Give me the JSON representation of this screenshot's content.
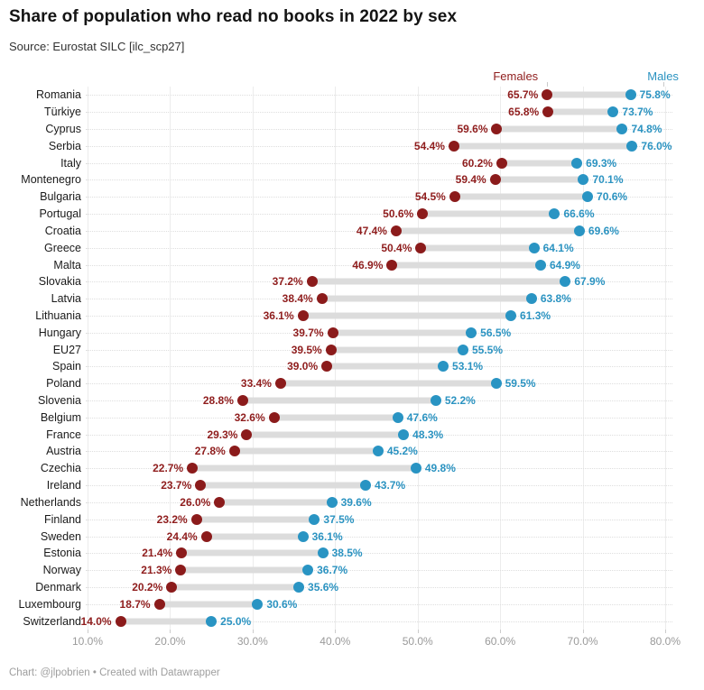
{
  "header": {
    "title": "Share of population who read no books in 2022 by sex",
    "source": "Source: Eurostat SILC [ilc_scp27]"
  },
  "legend": {
    "female_label": "Females",
    "male_label": "Males"
  },
  "colors": {
    "female": "#8B1B1B",
    "female_text": "#8F1D1D",
    "male": "#2994C3",
    "male_text": "#2B93C1",
    "connector": "#dcdcdc",
    "grid": "#ececec",
    "axis_text": "#9a9a9a"
  },
  "chart_data": {
    "type": "scatter",
    "variant": "dumbbell-range-plot",
    "title": "Share of population who read no books in 2022 by sex",
    "subtitle": "Source: Eurostat SILC [ilc_scp27]",
    "xlabel": "",
    "ylabel": "",
    "xlim": [
      10,
      80
    ],
    "grid": "vertical",
    "legend_position": "top-right",
    "value_suffix": "%",
    "x_tick_labels": [
      "10.0%",
      "20.0%",
      "30.0%",
      "40.0%",
      "50.0%",
      "60.0%",
      "70.0%",
      "80.0%"
    ],
    "x_tick_values": [
      10,
      20,
      30,
      40,
      50,
      60,
      70,
      80
    ],
    "categories": [
      "Romania",
      "Türkiye",
      "Cyprus",
      "Serbia",
      "Italy",
      "Montenegro",
      "Bulgaria",
      "Portugal",
      "Croatia",
      "Greece",
      "Malta",
      "Slovakia",
      "Latvia",
      "Lithuania",
      "Hungary",
      "EU27",
      "Spain",
      "Poland",
      "Slovenia",
      "Belgium",
      "France",
      "Austria",
      "Czechia",
      "Ireland",
      "Netherlands",
      "Finland",
      "Sweden",
      "Estonia",
      "Norway",
      "Denmark",
      "Luxembourg",
      "Switzerland"
    ],
    "series": [
      {
        "name": "Females",
        "values": [
          65.7,
          65.8,
          59.6,
          54.4,
          60.2,
          59.4,
          54.5,
          50.6,
          47.4,
          50.4,
          46.9,
          37.2,
          38.4,
          36.1,
          39.7,
          39.5,
          39.0,
          33.4,
          28.8,
          32.6,
          29.3,
          27.8,
          22.7,
          23.7,
          26.0,
          23.2,
          24.4,
          21.4,
          21.3,
          20.2,
          18.7,
          14.0
        ]
      },
      {
        "name": "Males",
        "values": [
          75.8,
          73.7,
          74.8,
          76.0,
          69.3,
          70.1,
          70.6,
          66.6,
          69.6,
          64.1,
          64.9,
          67.9,
          63.8,
          61.3,
          56.5,
          55.5,
          53.1,
          59.5,
          52.2,
          47.6,
          48.3,
          45.2,
          49.8,
          43.7,
          39.6,
          37.5,
          36.1,
          38.5,
          36.7,
          35.6,
          30.6,
          25.0
        ]
      }
    ]
  },
  "footer": {
    "credit": "Chart: @jlpobrien • Created with Datawrapper"
  }
}
